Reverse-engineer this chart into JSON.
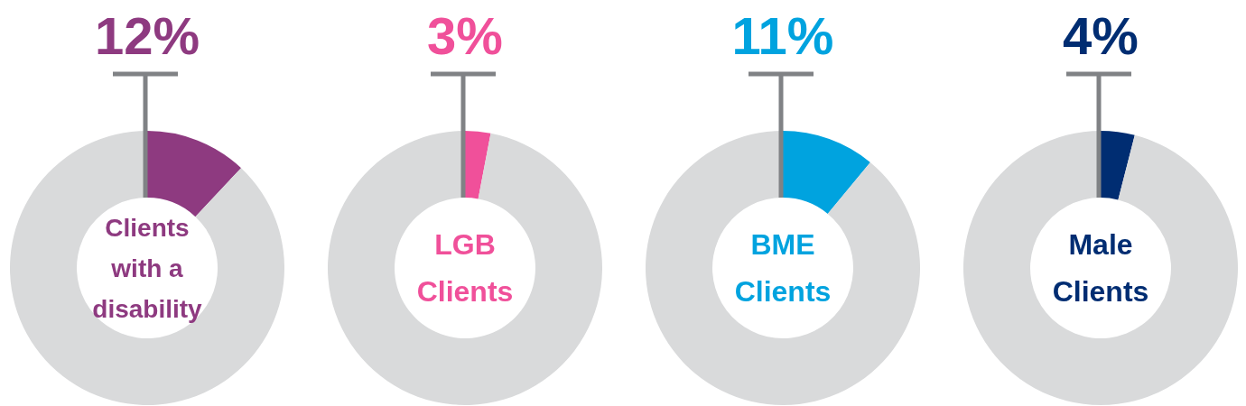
{
  "chart_data": [
    {
      "type": "donut",
      "title": "Clients with a disability",
      "categories": [
        null,
        null
      ],
      "values": [
        12,
        88
      ],
      "colors": [
        "#8e3a80",
        "#d9dadb"
      ],
      "value_labels": [
        "12%",
        null
      ]
    },
    {
      "type": "donut",
      "title": "LGB Clients",
      "categories": [
        null,
        null
      ],
      "values": [
        3,
        97
      ],
      "colors": [
        "#f0509a",
        "#d9dadb"
      ],
      "value_labels": [
        "3%",
        null
      ]
    },
    {
      "type": "donut",
      "title": "BME Clients",
      "categories": [
        null,
        null
      ],
      "values": [
        11,
        89
      ],
      "colors": [
        "#00a3df",
        "#d9dadb"
      ],
      "value_labels": [
        "11%",
        null
      ]
    },
    {
      "type": "donut",
      "title": "Male Clients",
      "categories": [
        null,
        null
      ],
      "values": [
        4,
        96
      ],
      "colors": [
        "#002d72",
        "#d9dadb"
      ],
      "value_labels": [
        "4%",
        null
      ]
    }
  ]
}
